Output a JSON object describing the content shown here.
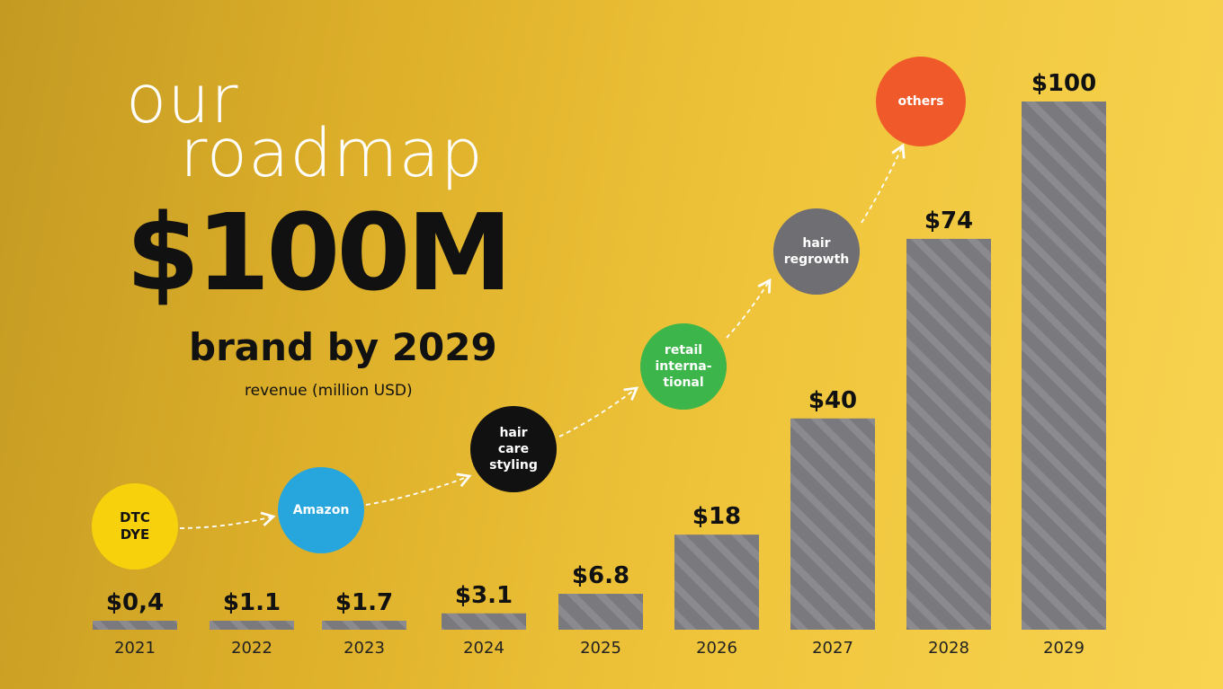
{
  "headline": {
    "line1": "our",
    "line2": "roadmap",
    "amount": "$100M",
    "subtitle": "brand by 2029",
    "unit": "revenue (million USD)"
  },
  "milestones": [
    {
      "label": "DTC\nDYE",
      "color": "#f6d10c"
    },
    {
      "label": "Amazon",
      "color": "#27a6dd"
    },
    {
      "label": "hair\ncare\nstyling",
      "color": "#111111"
    },
    {
      "label": "retail\ninterna-\ntional",
      "color": "#3cb64a"
    },
    {
      "label": "hair\nregrowth",
      "color": "#6f6f73"
    },
    {
      "label": "others",
      "color": "#f05a2a"
    }
  ],
  "chart_data": {
    "type": "bar",
    "categories": [
      "2021",
      "2022",
      "2023",
      "2024",
      "2025",
      "2026",
      "2027",
      "2028",
      "2029"
    ],
    "values": [
      0.4,
      1.1,
      1.7,
      3.1,
      6.8,
      18,
      40,
      74,
      100
    ],
    "data_labels": [
      "$0,4",
      "$1.1",
      "$1.7",
      "$3.1",
      "$6.8",
      "$18",
      "$40",
      "$74",
      "$100"
    ],
    "bar_color": "#7a7a7e",
    "ylim": [
      0,
      100
    ],
    "grid": false,
    "legend": "none"
  }
}
